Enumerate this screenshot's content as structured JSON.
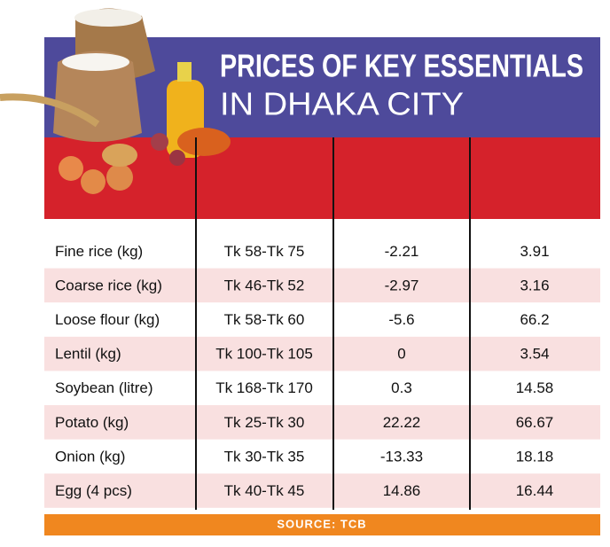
{
  "header": {
    "title_line1": "PRICES OF KEY ESSENTIALS",
    "title_line2": "IN DHAKA CITY"
  },
  "table": {
    "rows": [
      [
        "Fine rice (kg)",
        "Tk 58-Tk 75",
        "-2.21",
        "3.91"
      ],
      [
        "Coarse rice (kg)",
        "Tk 46-Tk 52",
        "-2.97",
        "3.16"
      ],
      [
        "Loose flour (kg)",
        "Tk 58-Tk 60",
        "-5.6",
        "66.2"
      ],
      [
        "Lentil (kg)",
        "Tk 100-Tk 105",
        "0",
        "3.54"
      ],
      [
        "Soybean (litre)",
        "Tk 168-Tk 170",
        "0.3",
        "14.58"
      ],
      [
        "Potato (kg)",
        "Tk 25-Tk 30",
        "22.22",
        "66.67"
      ],
      [
        "Onion (kg)",
        "Tk 30-Tk 35",
        "-13.33",
        "18.18"
      ],
      [
        "Egg (4 pcs)",
        "Tk 40-Tk 45",
        "14.86",
        "16.44"
      ]
    ]
  },
  "footer": {
    "source": "SOURCE: TCB"
  }
}
